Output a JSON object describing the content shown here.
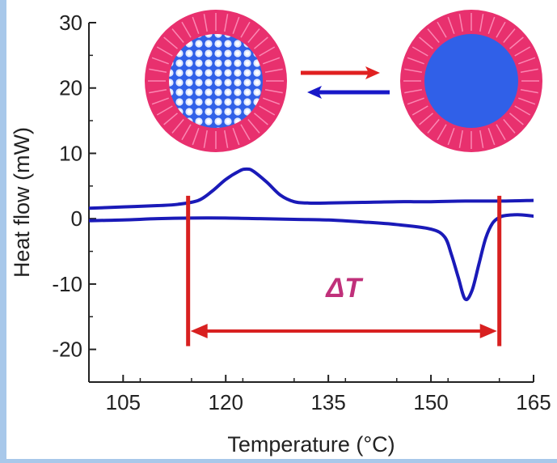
{
  "chart_data": {
    "type": "line",
    "xlabel": "Temperature (°C)",
    "ylabel": "Heat flow (mW)",
    "xlim": [
      100,
      165
    ],
    "ylim": [
      -25,
      30
    ],
    "xticks": [
      "105",
      "120",
      "135",
      "150",
      "165"
    ],
    "yticks": [
      "30",
      "20",
      "10",
      "0",
      "-10",
      "-20"
    ],
    "series": [
      {
        "color": "#1a1ab8",
        "x": [
          100,
          105,
          110,
          113,
          116,
          118,
          120,
          122,
          123,
          124,
          126,
          128,
          130,
          132,
          135,
          140,
          145,
          150,
          155,
          160,
          165
        ],
        "y": [
          1.6,
          1.8,
          2.0,
          2.2,
          2.8,
          4.2,
          6.0,
          7.3,
          7.6,
          7.3,
          5.6,
          3.6,
          2.6,
          2.4,
          2.4,
          2.5,
          2.6,
          2.6,
          2.7,
          2.7,
          2.8
        ]
      },
      {
        "color": "#1a1ab8",
        "x": [
          100,
          105,
          110,
          115,
          120,
          125,
          130,
          135,
          140,
          145,
          150,
          152,
          153,
          154,
          155,
          156,
          157,
          158,
          159,
          160,
          161,
          163,
          165
        ],
        "y": [
          -0.3,
          -0.2,
          0.0,
          0.1,
          0.1,
          0.0,
          -0.1,
          -0.2,
          -0.5,
          -0.9,
          -1.6,
          -2.8,
          -5.5,
          -9.0,
          -12.3,
          -11.0,
          -7.0,
          -3.0,
          -0.7,
          0.2,
          0.5,
          0.6,
          0.4
        ]
      }
    ],
    "annotations": {
      "delta_label": "ΔT",
      "delta_from": 114.5,
      "delta_to": 160,
      "color": "#d82020",
      "delta_text_color": "#c0307a"
    },
    "grid": false,
    "legend": "none"
  },
  "colors": {
    "background": "#a8c8ea",
    "plot_bg": "#ffffff",
    "shell": "#e8306e",
    "core_solid": "#3060e8",
    "arrow_forward": "#e02020",
    "arrow_back": "#1818c8"
  },
  "icons": {
    "solid_particle": "nanoparticle-crystalline-core-icon",
    "liquid_particle": "nanoparticle-liquid-core-icon",
    "equilibrium": "reversible-arrows-icon"
  }
}
